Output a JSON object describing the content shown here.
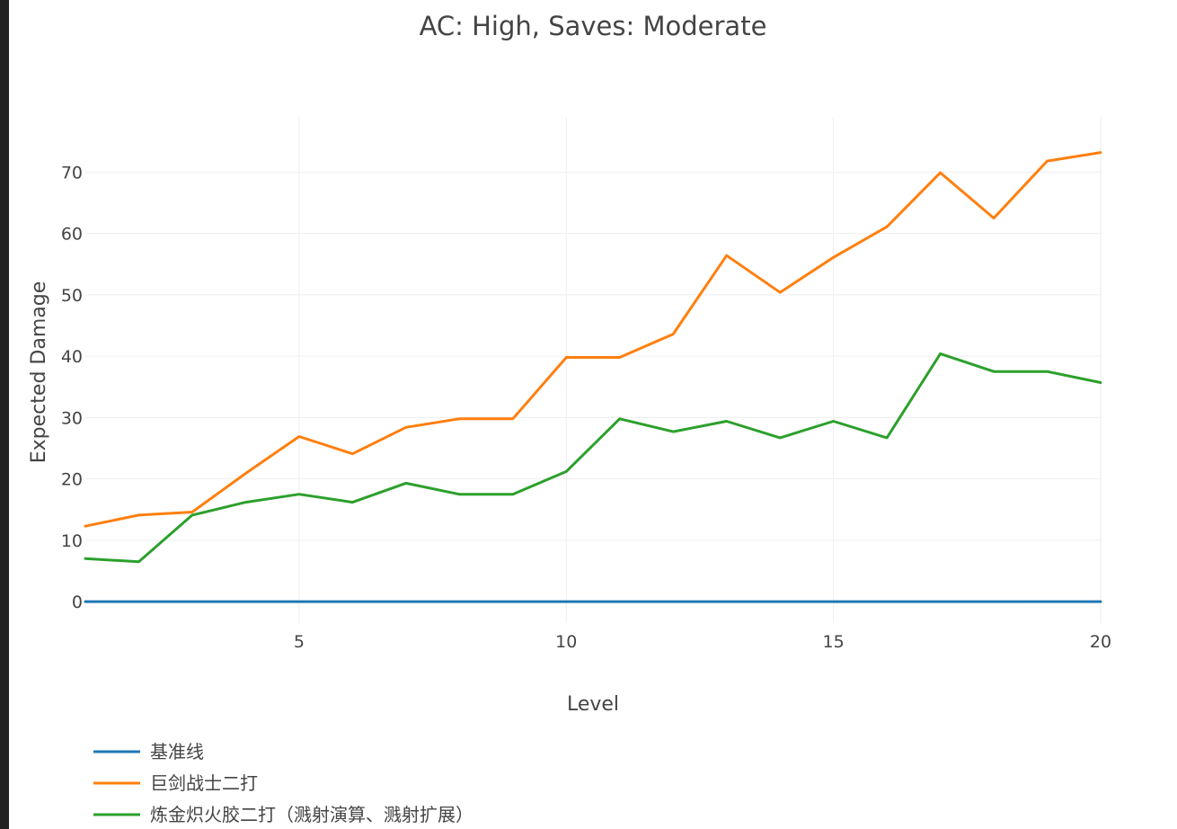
{
  "chart_data": {
    "type": "line",
    "title": "AC: High, Saves: Moderate",
    "xlabel": "Level",
    "ylabel": "Expected Damage",
    "xlim": [
      1,
      20
    ],
    "ylim": [
      -3.5,
      79
    ],
    "x_ticks": [
      5,
      10,
      15,
      20
    ],
    "y_ticks": [
      0,
      10,
      20,
      30,
      40,
      50,
      60,
      70
    ],
    "grid": true,
    "legend_position": "bottom-left",
    "x": [
      1,
      2,
      3,
      4,
      5,
      6,
      7,
      8,
      9,
      10,
      11,
      12,
      13,
      14,
      15,
      16,
      17,
      18,
      19,
      20
    ],
    "series": [
      {
        "name": "基准线",
        "color": "#1f77b4",
        "values": [
          0,
          0,
          0,
          0,
          0,
          0,
          0,
          0,
          0,
          0,
          0,
          0,
          0,
          0,
          0,
          0,
          0,
          0,
          0,
          0
        ]
      },
      {
        "name": "巨剑战士二打",
        "color": "#ff7f0e",
        "values": [
          12.3,
          14.1,
          14.6,
          20.9,
          26.9,
          24.1,
          28.4,
          29.8,
          29.8,
          39.8,
          39.8,
          43.6,
          56.4,
          50.4,
          56.1,
          61.1,
          69.9,
          62.5,
          71.8,
          73.2
        ]
      },
      {
        "name": "炼金炽火胶二打（溅射演算、溅射扩展）",
        "color": "#2ca02c",
        "values": [
          7.0,
          6.5,
          14.1,
          16.2,
          17.5,
          16.2,
          19.3,
          17.5,
          17.5,
          21.2,
          29.8,
          27.7,
          29.4,
          26.7,
          29.4,
          26.7,
          40.4,
          37.5,
          37.5,
          35.7
        ]
      }
    ]
  }
}
